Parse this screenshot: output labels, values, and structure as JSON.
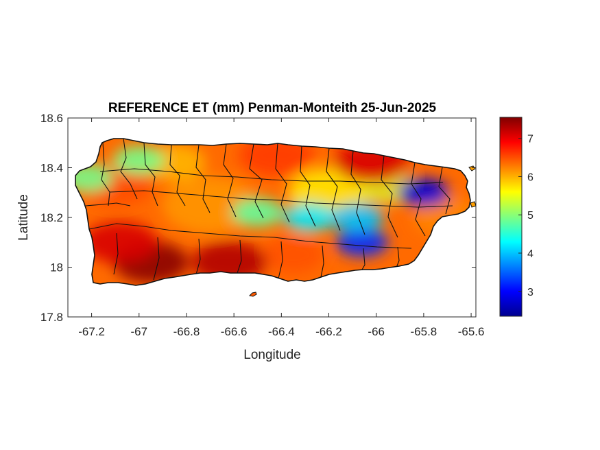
{
  "chart_data": {
    "type": "heatmap",
    "title": "REFERENCE ET (mm) Penman-Monteith 25-Jun-2025",
    "xlabel": "Longitude",
    "ylabel": "Latitude",
    "xlim": [
      -67.3,
      -65.58
    ],
    "ylim": [
      17.8,
      18.6
    ],
    "xticks": [
      -67.2,
      -67,
      -66.8,
      -66.6,
      -66.4,
      -66.2,
      -66,
      -65.8,
      -65.6
    ],
    "xtick_labels": [
      "-67.2",
      "-67",
      "-66.8",
      "-66.6",
      "-66.4",
      "-66.2",
      "-66",
      "-65.8",
      "-65.6"
    ],
    "yticks": [
      17.8,
      18,
      18.2,
      18.4,
      18.6
    ],
    "ytick_labels": [
      "17.8",
      "18",
      "18.2",
      "18.4",
      "18.6"
    ],
    "grid": false,
    "colormap": "jet",
    "colorbar": {
      "range": [
        2.35,
        7.55
      ],
      "ticks": [
        3,
        4,
        5,
        6,
        7
      ],
      "tick_labels": [
        "3",
        "4",
        "5",
        "6",
        "7"
      ]
    },
    "hotspots": [
      {
        "lon": -66.95,
        "lat": 18.02,
        "value": 7.5
      },
      {
        "lon": -66.62,
        "lat": 18.02,
        "value": 7.3
      },
      {
        "lon": -67.08,
        "lat": 18.1,
        "value": 7.1
      },
      {
        "lon": -66.02,
        "lat": 18.42,
        "value": 7.1
      },
      {
        "lon": -66.42,
        "lat": 18.45,
        "value": 6.6
      },
      {
        "lon": -67.1,
        "lat": 18.33,
        "value": 6.5
      },
      {
        "lon": -65.8,
        "lat": 18.3,
        "value": 2.8
      },
      {
        "lon": -66.06,
        "lat": 18.1,
        "value": 3.2
      },
      {
        "lon": -66.28,
        "lat": 18.2,
        "value": 4.2
      },
      {
        "lon": -66.08,
        "lat": 18.2,
        "value": 4.0
      },
      {
        "lon": -66.5,
        "lat": 18.22,
        "value": 4.8
      },
      {
        "lon": -67.0,
        "lat": 18.43,
        "value": 4.9
      },
      {
        "lon": -67.22,
        "lat": 18.36,
        "value": 4.9
      }
    ]
  }
}
